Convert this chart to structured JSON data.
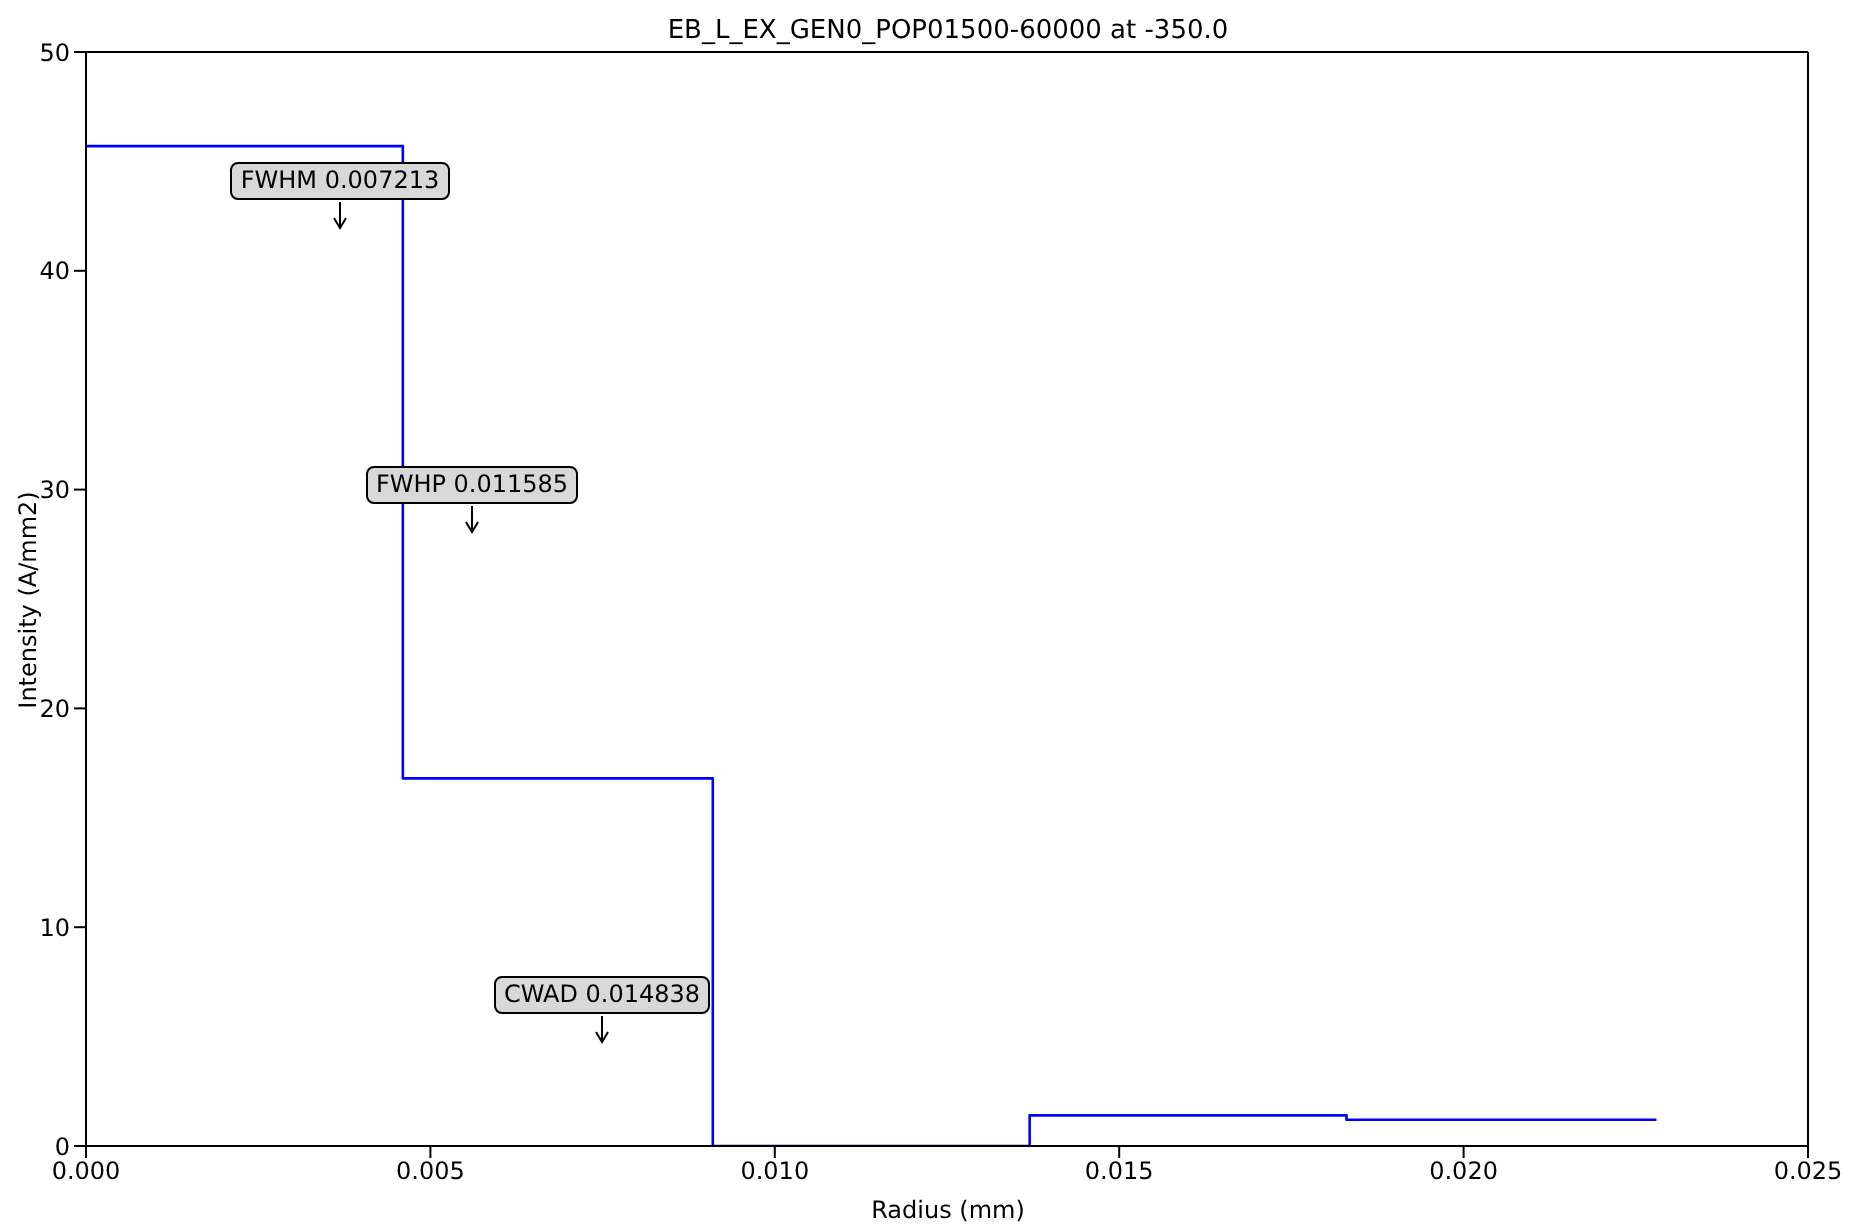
{
  "chart_data": {
    "type": "step",
    "title": "EB_L_EX_GEN0_POP01500-60000 at -350.0",
    "xlabel": "Radius (mm)",
    "ylabel": "Intensity (A/mm2)",
    "x": [
      0,
      0.0046,
      0.0091,
      0.0137,
      0.0183,
      0.0228
    ],
    "series": [
      {
        "color": "#0000ff",
        "values": [
          45.7,
          16.8,
          0,
          1.4,
          1.2,
          1.2
        ]
      }
    ],
    "xlim": [
      0,
      0.025
    ],
    "xticks": [
      {
        "value": 0,
        "label": "0.000"
      },
      {
        "value": 0.005,
        "label": "0.005"
      },
      {
        "value": 0.01,
        "label": "0.010"
      },
      {
        "value": 0.015,
        "label": "0.015"
      },
      {
        "value": 0.02,
        "label": "0.020"
      },
      {
        "value": 0.025,
        "label": "0.025"
      }
    ],
    "ylim": [
      0,
      50
    ],
    "yticks": [
      0,
      10,
      20,
      30,
      40,
      50
    ],
    "annotations": [
      "FWHM 0.007213",
      "FWHP 0.011585",
      "CWAD 0.014838"
    ]
  }
}
